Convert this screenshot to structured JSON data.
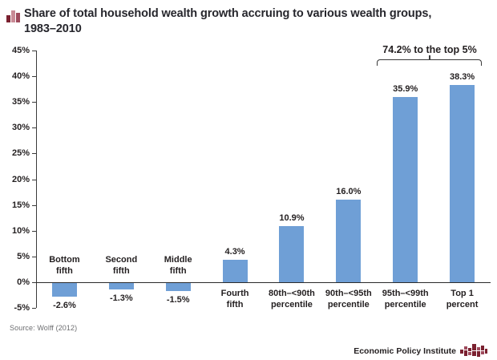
{
  "header": {
    "title_line1": "Share of total household wealth growth accruing to various wealth groups,",
    "title_line2": "1983–2010"
  },
  "chart_data": {
    "type": "bar",
    "title": "Share of total household wealth growth accruing to various wealth groups, 1983–2010",
    "categories": [
      "Bottom fifth",
      "Second fifth",
      "Middle fifth",
      "Fourth fifth",
      "80th–<90th percentile",
      "90th–<95th percentile",
      "95th–<99th percentile",
      "Top 1 percent"
    ],
    "category_lines": [
      [
        "Bottom",
        "fifth"
      ],
      [
        "Second",
        "fifth"
      ],
      [
        "Middle",
        "fifth"
      ],
      [
        "Fourth",
        "fifth"
      ],
      [
        "80th–<90th",
        "percentile"
      ],
      [
        "90th–<95th",
        "percentile"
      ],
      [
        "95th–<99th",
        "percentile"
      ],
      [
        "Top 1",
        "percent"
      ]
    ],
    "values": [
      -2.6,
      -1.3,
      -1.5,
      4.3,
      10.9,
      16.0,
      35.9,
      38.3
    ],
    "value_labels": [
      "-2.6%",
      "-1.3%",
      "-1.5%",
      "4.3%",
      "10.9%",
      "16.0%",
      "35.9%",
      "38.3%"
    ],
    "xlabel": "",
    "ylabel": "",
    "ylim": [
      -5,
      45
    ],
    "ytick_step": 5,
    "ytick_labels": [
      "45%",
      "40%",
      "35%",
      "30%",
      "25%",
      "20%",
      "15%",
      "10%",
      "5%",
      "0%",
      "-5%"
    ],
    "grid": false,
    "legend": "none",
    "bar_color": "#6f9fd6",
    "annotation": {
      "text": "74.2% to the top 5%",
      "span_categories": [
        "95th–<99th percentile",
        "Top 1 percent"
      ]
    }
  },
  "footer": {
    "source": "Source: Wolff (2012)",
    "brand": "Economic Policy Institute"
  },
  "colors": {
    "bar": "#6f9fd6",
    "text": "#231f20",
    "axis": "#3a3a3a",
    "brand_red_dark": "#7b2130",
    "brand_red_mid": "#9e4a5c",
    "brand_red_light": "#c98b96"
  }
}
